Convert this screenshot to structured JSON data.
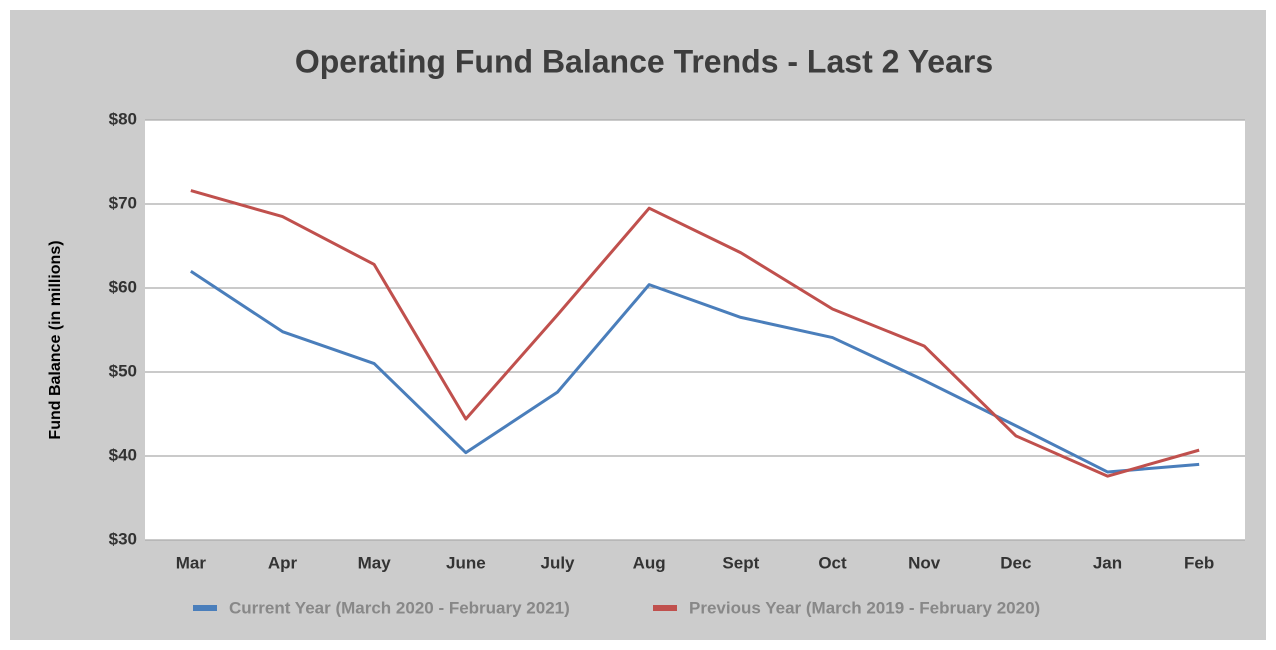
{
  "chart_data": {
    "type": "line",
    "title": "Operating Fund Balance Trends - Last 2 Years",
    "y_label": "Fund Balance (in millions)",
    "categories": [
      "Mar",
      "Apr",
      "May",
      "June",
      "July",
      "Aug",
      "Sept",
      "Oct",
      "Nov",
      "Dec",
      "Jan",
      "Feb"
    ],
    "series": [
      {
        "name": "Current Year (March 2020 - February 2021)",
        "color": "#4a7ebb",
        "values": [
          62,
          54.8,
          51,
          40.4,
          47.6,
          60.4,
          56.5,
          54.1,
          49,
          43.6,
          38.1,
          39
        ]
      },
      {
        "name": "Previous Year (March 2019 - February 2020)",
        "color": "#c0504d",
        "values": [
          71.6,
          68.5,
          62.8,
          44.4,
          56.8,
          69.5,
          64.2,
          57.5,
          53.1,
          42.4,
          37.6,
          40.7
        ]
      }
    ],
    "ylim": [
      30,
      80
    ],
    "yticks": [
      {
        "value": 30,
        "label": "$30"
      },
      {
        "value": 40,
        "label": "$40"
      },
      {
        "value": 50,
        "label": "$50"
      },
      {
        "value": 60,
        "label": "$60"
      },
      {
        "value": 70,
        "label": "$70"
      },
      {
        "value": 80,
        "label": "$80"
      }
    ],
    "grid": true,
    "legend": "bottom"
  }
}
